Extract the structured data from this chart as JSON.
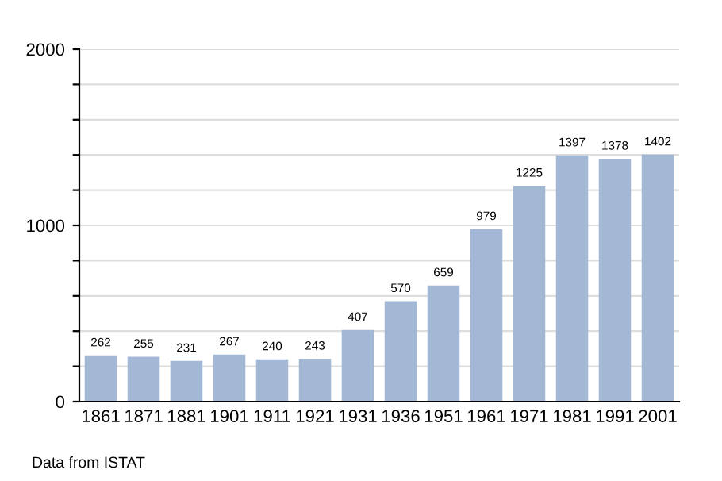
{
  "chart_data": {
    "type": "bar",
    "categories": [
      "1861",
      "1871",
      "1881",
      "1901",
      "1911",
      "1921",
      "1931",
      "1936",
      "1951",
      "1961",
      "1971",
      "1981",
      "1991",
      "2001"
    ],
    "values": [
      262,
      255,
      231,
      267,
      240,
      243,
      407,
      570,
      659,
      979,
      1225,
      1397,
      1378,
      1402
    ],
    "color": "#a3b8d4",
    "data_labels": true,
    "grid": "y",
    "ylim": [
      0,
      2000
    ],
    "yticks": [
      0,
      {
        "value": 200,
        "label": null
      },
      {
        "value": 400,
        "label": null
      },
      {
        "value": 600,
        "label": null
      },
      {
        "value": 800,
        "label": null
      },
      1000,
      {
        "value": 1200,
        "label": null
      },
      {
        "value": 1400,
        "label": null
      },
      {
        "value": 1600,
        "label": null
      },
      {
        "value": 1800,
        "label": null
      },
      2000
    ],
    "annotations": [
      "Data from ISTAT"
    ]
  }
}
